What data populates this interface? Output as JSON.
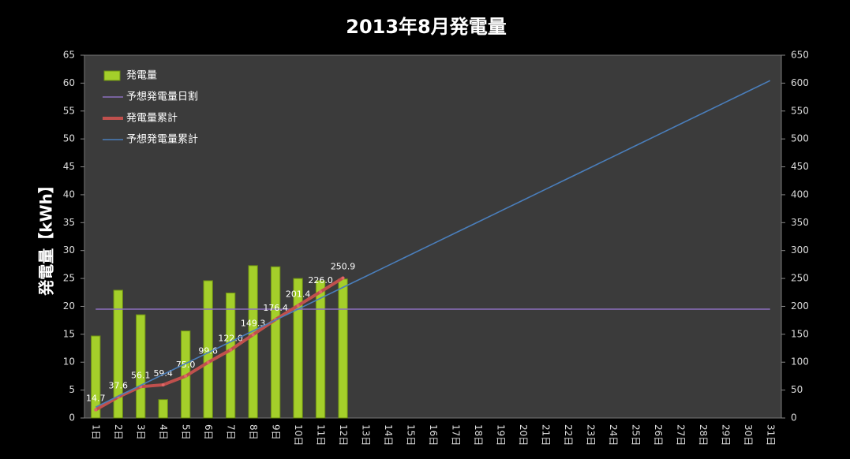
{
  "chart_data": {
    "type": "bar",
    "title": "2013年8月発電量",
    "y_label": "発電量【kWh】",
    "categories": [
      "1日",
      "2日",
      "3日",
      "4日",
      "5日",
      "6日",
      "7日",
      "8日",
      "9日",
      "10日",
      "11日",
      "12日",
      "13日",
      "14日",
      "15日",
      "16日",
      "17日",
      "18日",
      "19日",
      "20日",
      "21日",
      "22日",
      "23日",
      "24日",
      "25日",
      "26日",
      "27日",
      "28日",
      "29日",
      "30日",
      "31日"
    ],
    "ylim": [
      0,
      65
    ],
    "yticks": [
      0,
      5,
      10,
      15,
      20,
      25,
      30,
      35,
      40,
      45,
      50,
      55,
      60,
      65
    ],
    "y2lim": [
      0,
      650
    ],
    "y2ticks": [
      0,
      50,
      100,
      150,
      200,
      250,
      300,
      350,
      400,
      450,
      500,
      550,
      600,
      650
    ],
    "legend": "upper left",
    "series": [
      {
        "name": "発電量",
        "type": "bar",
        "color": "#a4cf2a",
        "values": [
          14.7,
          22.9,
          18.5,
          3.3,
          15.6,
          24.6,
          22.4,
          27.3,
          27.1,
          25.0,
          24.6,
          24.9,
          null,
          null,
          null,
          null,
          null,
          null,
          null,
          null,
          null,
          null,
          null,
          null,
          null,
          null,
          null,
          null,
          null,
          null,
          null
        ]
      },
      {
        "name": "予想発電量日割",
        "type": "line",
        "color": "#8c6fc0",
        "values": [
          19.5,
          19.5,
          19.5,
          19.5,
          19.5,
          19.5,
          19.5,
          19.5,
          19.5,
          19.5,
          19.5,
          19.5,
          19.5,
          19.5,
          19.5,
          19.5,
          19.5,
          19.5,
          19.5,
          19.5,
          19.5,
          19.5,
          19.5,
          19.5,
          19.5,
          19.5,
          19.5,
          19.5,
          19.5,
          19.5,
          19.5
        ]
      },
      {
        "name": "発電量累計",
        "type": "line",
        "axis": "y2",
        "color": "#c0504d",
        "markers": true,
        "values": [
          14.7,
          37.6,
          56.1,
          59.4,
          75.0,
          99.6,
          122.0,
          149.3,
          176.4,
          201.4,
          226.0,
          250.9,
          null,
          null,
          null,
          null,
          null,
          null,
          null,
          null,
          null,
          null,
          null,
          null,
          null,
          null,
          null,
          null,
          null,
          null,
          null
        ],
        "value_labels": [
          "14.7",
          "37.6",
          "56.1",
          "59.4",
          "75.0",
          "99.6",
          "122.0",
          "149.3",
          "176.4",
          "201.4",
          "226.0",
          "250.9",
          null,
          null,
          null,
          null,
          null,
          null,
          null,
          null,
          null,
          null,
          null,
          null,
          null,
          null,
          null,
          null,
          null,
          null,
          null
        ]
      },
      {
        "name": "予想発電量累計",
        "type": "line",
        "axis": "y2",
        "color": "#4a7ebb",
        "values": [
          19.5,
          39,
          58.5,
          78,
          97.5,
          117,
          136.5,
          156,
          175.5,
          195,
          214.5,
          234,
          253.5,
          273,
          292.5,
          312,
          331.5,
          351,
          370.5,
          390,
          409.5,
          429,
          448.5,
          468,
          487.5,
          507,
          526.5,
          546,
          565.5,
          585,
          604.5
        ]
      }
    ]
  }
}
